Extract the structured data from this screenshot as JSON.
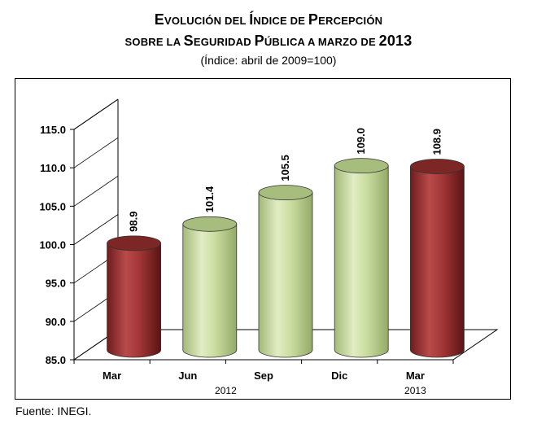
{
  "chart_data": {
    "type": "bar",
    "title": "Evolución del Índice de Percepción sobre la Seguridad Pública a marzo de 2013",
    "title_parts": {
      "line1": [
        {
          "t": "E",
          "s": "big"
        },
        {
          "t": "VOLUCIÓN DEL ",
          "s": "sc"
        },
        {
          "t": "Í",
          "s": "big"
        },
        {
          "t": "NDICE DE ",
          "s": "sc"
        },
        {
          "t": "P",
          "s": "big"
        },
        {
          "t": "ERCEPCIÓN",
          "s": "sc"
        }
      ],
      "line2": [
        {
          "t": "SOBRE LA ",
          "s": "sc"
        },
        {
          "t": "S",
          "s": "big"
        },
        {
          "t": "EGURIDAD ",
          "s": "sc"
        },
        {
          "t": "P",
          "s": "big"
        },
        {
          "t": "ÚBLICA A MARZO DE ",
          "s": "sc"
        },
        {
          "t": "2013",
          "s": "big"
        }
      ]
    },
    "subtitle": "(Índice: abril de 2009=100)",
    "categories": [
      "Mar",
      "Jun",
      "Sep",
      "Dic",
      "Mar"
    ],
    "values": [
      98.9,
      101.4,
      105.5,
      109.0,
      108.9
    ],
    "value_labels": [
      "98.9",
      "101.4",
      "105.5",
      "109.0",
      "108.9"
    ],
    "bar_colors": [
      "#9e3434",
      "#c5d99a",
      "#c5d99a",
      "#c5d99a",
      "#9e3434"
    ],
    "year_labels": [
      {
        "text": "2012",
        "under": 2
      },
      {
        "text": "2013",
        "under": 4
      }
    ],
    "yticks": [
      "85.0",
      "90.0",
      "95.0",
      "100.0",
      "105.0",
      "110.0",
      "115.0"
    ],
    "ylim": [
      85,
      115
    ],
    "bar_shape": "cylinder",
    "grid": false,
    "legend": "none",
    "xlabel": "",
    "ylabel": ""
  },
  "source": "Fuente: INEGI."
}
